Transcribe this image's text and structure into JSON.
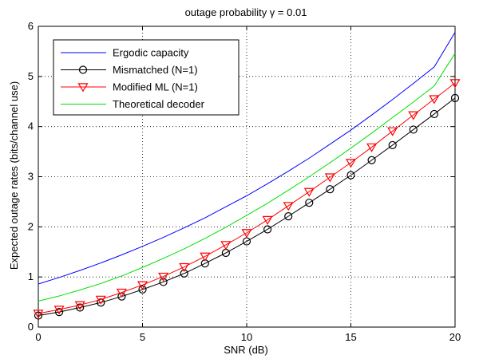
{
  "chart_data": {
    "type": "line",
    "title": "outage probability γ = 0.01",
    "xlabel": "SNR (dB)",
    "ylabel": "Expected outage rates (bits/channel use)",
    "xlim": [
      0,
      20
    ],
    "ylim": [
      0,
      6
    ],
    "xticks": [
      0,
      5,
      10,
      15,
      20
    ],
    "yticks": [
      0,
      1,
      2,
      3,
      4,
      5,
      6
    ],
    "grid": true,
    "legend_position": "top-left",
    "x": [
      0,
      1,
      2,
      3,
      4,
      5,
      6,
      7,
      8,
      9,
      10,
      11,
      12,
      13,
      14,
      15,
      16,
      17,
      18,
      19,
      20
    ],
    "series": [
      {
        "name": "Ergodic capacity",
        "color": "#0000ff",
        "marker": "none",
        "values": [
          0.86,
          0.99,
          1.13,
          1.28,
          1.44,
          1.61,
          1.79,
          1.98,
          2.18,
          2.4,
          2.62,
          2.86,
          3.11,
          3.37,
          3.65,
          3.93,
          4.23,
          4.54,
          4.86,
          5.19,
          5.88
        ]
      },
      {
        "name": "Mismatched (N=1)",
        "color": "#000000",
        "marker": "circle",
        "values": [
          0.23,
          0.3,
          0.39,
          0.49,
          0.61,
          0.75,
          0.9,
          1.07,
          1.27,
          1.48,
          1.71,
          1.95,
          2.21,
          2.48,
          2.75,
          3.03,
          3.33,
          3.63,
          3.94,
          4.25,
          4.57
        ]
      },
      {
        "name": "Modified ML (N=1)",
        "color": "#ff0000",
        "marker": "triangle-down",
        "values": [
          0.27,
          0.35,
          0.44,
          0.55,
          0.69,
          0.84,
          1.01,
          1.2,
          1.41,
          1.64,
          1.88,
          2.14,
          2.42,
          2.7,
          2.99,
          3.28,
          3.59,
          3.91,
          4.23,
          4.55,
          4.87
        ]
      },
      {
        "name": "Theoretical decoder",
        "color": "#00e000",
        "marker": "none",
        "values": [
          0.52,
          0.62,
          0.74,
          0.87,
          1.02,
          1.19,
          1.37,
          1.56,
          1.77,
          1.99,
          2.23,
          2.47,
          2.73,
          3.0,
          3.28,
          3.57,
          3.87,
          4.18,
          4.49,
          4.81,
          5.46
        ]
      }
    ]
  }
}
